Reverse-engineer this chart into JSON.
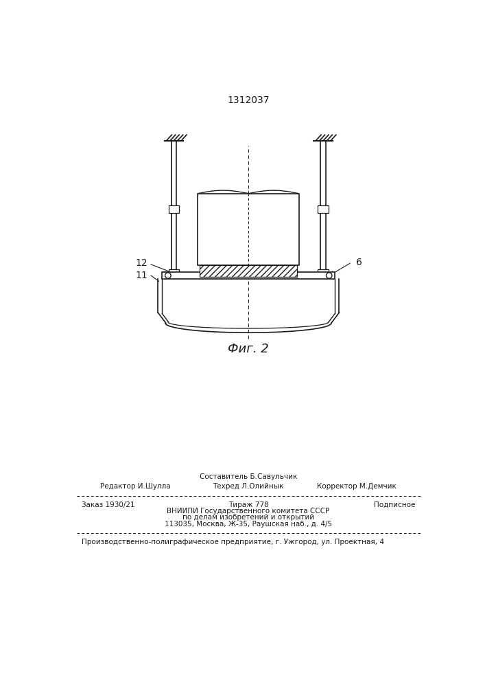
{
  "patent_number": "1312037",
  "fig_label": "Фиг. 2",
  "bg_color": "#ffffff",
  "line_color": "#1a1a1a",
  "label_12": "12",
  "label_11": "11",
  "label_6": "6",
  "footer_row1_left": "Редактор И.Шулла",
  "footer_row1_mid1": "Составитель Б.Савульчик",
  "footer_row1_mid2": "Техред Л.Олийнык",
  "footer_row1_right": "Корректор М.Демчик",
  "footer_row2_left": "Заказ 1930/21",
  "footer_row2_mid": "Тираж 778",
  "footer_row2_right": "Подписное",
  "footer_row3_1": "ВНИИПИ Государственного комитета СССР",
  "footer_row3_2": "по делам изобретений и открытий",
  "footer_row3_3": "113035, Москва, Ж-35, Раушская наб., д. 4/5",
  "footer_bottom": "Производственно-полиграфическое предприятие, г. Ужгород, ул. Проектная, 4"
}
